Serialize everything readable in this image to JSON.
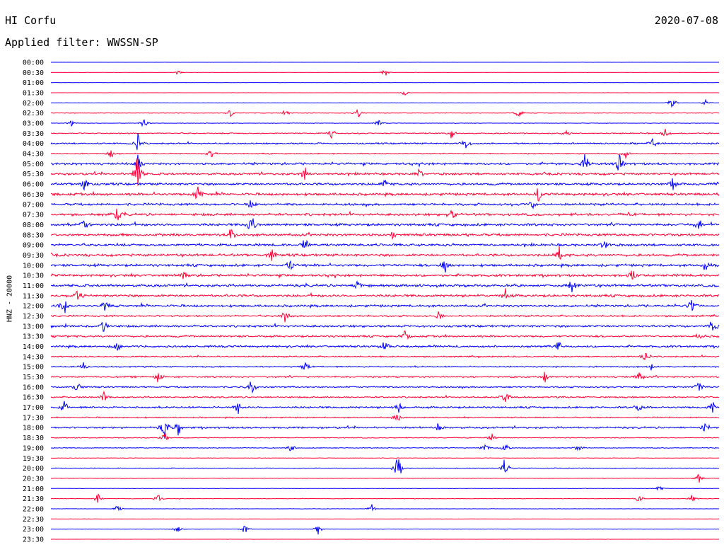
{
  "header": {
    "station": "HI Corfu",
    "date": "2020-07-08",
    "filter_label": "Applied filter: WWSSN-SP"
  },
  "chart_data": {
    "type": "line",
    "title": "HI Corfu",
    "channel_label": "HNZ - 20000",
    "colors": [
      "#0000ff",
      "#ff0033"
    ],
    "rows": [
      {
        "time": "00:00",
        "color": "#0000ff",
        "activity": 0.05,
        "events": []
      },
      {
        "time": "00:30",
        "color": "#ff0033",
        "activity": 0.08,
        "events": [
          [
            0.19,
            0.5
          ],
          [
            0.5,
            1.2
          ]
        ]
      },
      {
        "time": "01:00",
        "color": "#0000ff",
        "activity": 0.05,
        "events": []
      },
      {
        "time": "01:30",
        "color": "#ff0033",
        "activity": 0.1,
        "events": [
          [
            0.53,
            0.8
          ]
        ]
      },
      {
        "time": "02:00",
        "color": "#0000ff",
        "activity": 0.12,
        "events": [
          [
            0.93,
            1.2
          ],
          [
            0.98,
            1.0
          ]
        ]
      },
      {
        "time": "02:30",
        "color": "#ff0033",
        "activity": 0.25,
        "events": [
          [
            0.27,
            1.0
          ],
          [
            0.35,
            0.9
          ],
          [
            0.46,
            1.0
          ],
          [
            0.7,
            1.2
          ]
        ]
      },
      {
        "time": "03:00",
        "color": "#0000ff",
        "activity": 0.2,
        "events": [
          [
            0.03,
            0.8
          ],
          [
            0.14,
            1.4
          ],
          [
            0.49,
            0.9
          ]
        ]
      },
      {
        "time": "03:30",
        "color": "#ff0033",
        "activity": 0.45,
        "events": [
          [
            0.42,
            1.0
          ],
          [
            0.6,
            1.2
          ],
          [
            0.77,
            1.0
          ],
          [
            0.92,
            1.0
          ]
        ]
      },
      {
        "time": "04:00",
        "color": "#0000ff",
        "activity": 0.6,
        "events": [
          [
            0.13,
            2.0
          ],
          [
            0.62,
            1.5
          ],
          [
            0.9,
            1.2
          ]
        ]
      },
      {
        "time": "04:30",
        "color": "#ff0033",
        "activity": 0.45,
        "events": [
          [
            0.09,
            1.0
          ],
          [
            0.24,
            1.0
          ],
          [
            0.86,
            1.2
          ]
        ]
      },
      {
        "time": "05:00",
        "color": "#0000ff",
        "activity": 0.9,
        "events": [
          [
            0.8,
            2.3
          ],
          [
            0.85,
            2.0
          ],
          [
            0.13,
            1.5
          ]
        ]
      },
      {
        "time": "05:30",
        "color": "#ff0033",
        "activity": 0.9,
        "events": [
          [
            0.13,
            4.5
          ],
          [
            0.38,
            1.4
          ],
          [
            0.55,
            1.2
          ]
        ]
      },
      {
        "time": "06:00",
        "color": "#0000ff",
        "activity": 0.9,
        "events": [
          [
            0.05,
            1.4
          ],
          [
            0.5,
            1.3
          ],
          [
            0.93,
            1.2
          ]
        ]
      },
      {
        "time": "06:30",
        "color": "#ff0033",
        "activity": 1.0,
        "events": [
          [
            0.22,
            1.5
          ],
          [
            0.73,
            1.5
          ]
        ]
      },
      {
        "time": "07:00",
        "color": "#0000ff",
        "activity": 0.95,
        "events": [
          [
            0.3,
            1.3
          ],
          [
            0.72,
            1.3
          ]
        ]
      },
      {
        "time": "07:30",
        "color": "#ff0033",
        "activity": 1.0,
        "events": [
          [
            0.1,
            1.3
          ],
          [
            0.6,
            1.3
          ]
        ]
      },
      {
        "time": "08:00",
        "color": "#0000ff",
        "activity": 1.0,
        "events": [
          [
            0.3,
            2.5
          ],
          [
            0.05,
            1.3
          ],
          [
            0.97,
            1.3
          ]
        ]
      },
      {
        "time": "08:30",
        "color": "#ff0033",
        "activity": 1.0,
        "events": [
          [
            0.27,
            1.5
          ],
          [
            0.51,
            1.3
          ]
        ]
      },
      {
        "time": "09:00",
        "color": "#0000ff",
        "activity": 0.95,
        "events": [
          [
            0.38,
            1.4
          ],
          [
            0.83,
            1.3
          ]
        ]
      },
      {
        "time": "09:30",
        "color": "#ff0033",
        "activity": 1.0,
        "events": [
          [
            0.76,
            1.8
          ],
          [
            0.33,
            1.3
          ]
        ]
      },
      {
        "time": "10:00",
        "color": "#0000ff",
        "activity": 1.0,
        "events": [
          [
            0.36,
            1.4
          ],
          [
            0.59,
            1.3
          ],
          [
            0.98,
            1.4
          ]
        ]
      },
      {
        "time": "10:30",
        "color": "#ff0033",
        "activity": 0.95,
        "events": [
          [
            0.2,
            1.3
          ],
          [
            0.87,
            1.3
          ]
        ]
      },
      {
        "time": "11:00",
        "color": "#0000ff",
        "activity": 1.0,
        "events": [
          [
            0.46,
            1.4
          ],
          [
            0.78,
            1.3
          ]
        ]
      },
      {
        "time": "11:30",
        "color": "#ff0033",
        "activity": 0.95,
        "events": [
          [
            0.04,
            1.3
          ],
          [
            0.68,
            1.3
          ]
        ]
      },
      {
        "time": "12:00",
        "color": "#0000ff",
        "activity": 0.9,
        "events": [
          [
            0.02,
            1.5
          ],
          [
            0.08,
            1.4
          ],
          [
            0.96,
            1.6
          ]
        ]
      },
      {
        "time": "12:30",
        "color": "#ff0033",
        "activity": 0.7,
        "events": [
          [
            0.35,
            1.2
          ],
          [
            0.58,
            1.2
          ]
        ]
      },
      {
        "time": "13:00",
        "color": "#0000ff",
        "activity": 0.85,
        "events": [
          [
            0.08,
            1.6
          ],
          [
            0.99,
            1.4
          ]
        ]
      },
      {
        "time": "13:30",
        "color": "#ff0033",
        "activity": 0.75,
        "events": [
          [
            0.53,
            1.3
          ],
          [
            0.97,
            1.4
          ]
        ]
      },
      {
        "time": "14:00",
        "color": "#0000ff",
        "activity": 0.8,
        "events": [
          [
            0.1,
            1.3
          ],
          [
            0.5,
            1.2
          ],
          [
            0.76,
            1.3
          ]
        ]
      },
      {
        "time": "14:30",
        "color": "#ff0033",
        "activity": 0.55,
        "events": [
          [
            0.89,
            1.3
          ]
        ]
      },
      {
        "time": "15:00",
        "color": "#0000ff",
        "activity": 0.55,
        "events": [
          [
            0.05,
            1.0
          ],
          [
            0.38,
            1.0
          ],
          [
            0.9,
            1.0
          ]
        ]
      },
      {
        "time": "15:30",
        "color": "#ff0033",
        "activity": 0.65,
        "events": [
          [
            0.16,
            1.2
          ],
          [
            0.74,
            1.2
          ],
          [
            0.88,
            1.2
          ]
        ]
      },
      {
        "time": "16:00",
        "color": "#0000ff",
        "activity": 0.6,
        "events": [
          [
            0.04,
            1.2
          ],
          [
            0.3,
            1.5
          ],
          [
            0.97,
            1.3
          ]
        ]
      },
      {
        "time": "16:30",
        "color": "#ff0033",
        "activity": 0.6,
        "events": [
          [
            0.68,
            1.4
          ],
          [
            0.08,
            1.1
          ]
        ]
      },
      {
        "time": "17:00",
        "color": "#0000ff",
        "activity": 0.75,
        "events": [
          [
            0.02,
            1.3
          ],
          [
            0.28,
            1.5
          ],
          [
            0.52,
            1.5
          ],
          [
            0.88,
            1.4
          ],
          [
            0.99,
            1.2
          ]
        ]
      },
      {
        "time": "17:30",
        "color": "#ff0033",
        "activity": 0.5,
        "events": [
          [
            0.52,
            1.1
          ]
        ]
      },
      {
        "time": "18:00",
        "color": "#0000ff",
        "activity": 0.75,
        "events": [
          [
            0.17,
            2.8
          ],
          [
            0.19,
            2.2
          ],
          [
            0.58,
            1.2
          ],
          [
            0.98,
            1.3
          ]
        ]
      },
      {
        "time": "18:30",
        "color": "#ff0033",
        "activity": 0.35,
        "events": [
          [
            0.17,
            1.1
          ],
          [
            0.66,
            1.1
          ]
        ]
      },
      {
        "time": "19:00",
        "color": "#0000ff",
        "activity": 0.3,
        "events": [
          [
            0.36,
            1.0
          ],
          [
            0.65,
            1.3
          ],
          [
            0.68,
            1.1
          ],
          [
            0.79,
            1.0
          ]
        ]
      },
      {
        "time": "19:30",
        "color": "#ff0033",
        "activity": 0.2,
        "events": []
      },
      {
        "time": "20:00",
        "color": "#0000ff",
        "activity": 0.3,
        "events": [
          [
            0.52,
            4.0
          ],
          [
            0.68,
            3.2
          ]
        ]
      },
      {
        "time": "20:30",
        "color": "#ff0033",
        "activity": 0.2,
        "events": [
          [
            0.97,
            1.0
          ]
        ]
      },
      {
        "time": "21:00",
        "color": "#0000ff",
        "activity": 0.15,
        "events": [
          [
            0.91,
            0.9
          ]
        ]
      },
      {
        "time": "21:30",
        "color": "#ff0033",
        "activity": 0.2,
        "events": [
          [
            0.07,
            1.1
          ],
          [
            0.16,
            1.1
          ],
          [
            0.88,
            1.0
          ],
          [
            0.96,
            1.0
          ]
        ]
      },
      {
        "time": "22:00",
        "color": "#0000ff",
        "activity": 0.15,
        "events": [
          [
            0.1,
            0.9
          ],
          [
            0.48,
            0.9
          ]
        ]
      },
      {
        "time": "22:30",
        "color": "#ff0033",
        "activity": 0.1,
        "events": []
      },
      {
        "time": "23:00",
        "color": "#0000ff",
        "activity": 0.15,
        "events": [
          [
            0.19,
            0.9
          ],
          [
            0.29,
            0.9
          ],
          [
            0.4,
            1.0
          ]
        ]
      },
      {
        "time": "23:30",
        "color": "#ff0033",
        "activity": 0.1,
        "events": []
      }
    ]
  }
}
